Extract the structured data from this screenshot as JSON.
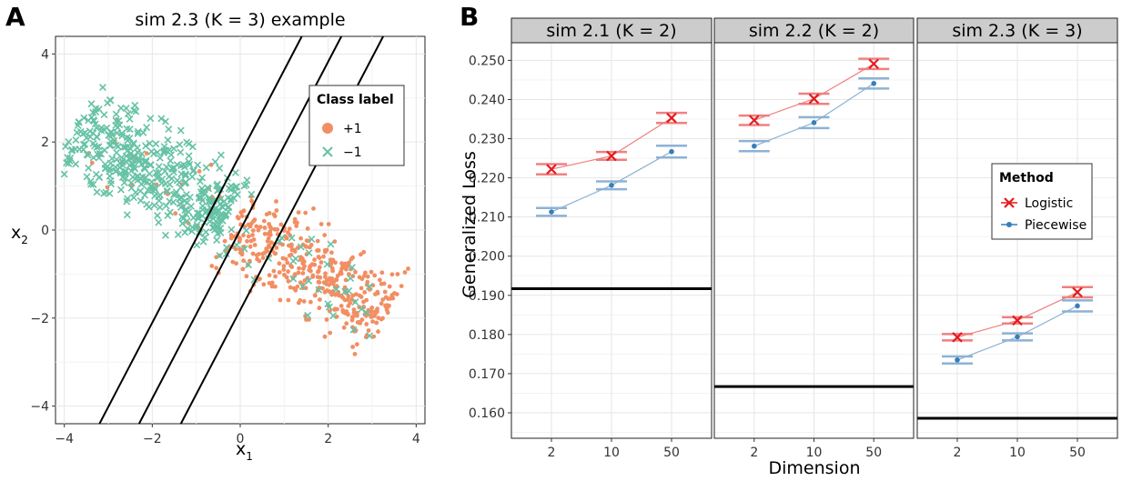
{
  "panel_labels": [
    "A",
    "B"
  ],
  "chart_data": [
    {
      "type": "scatter",
      "title": "sim 2.3 (K = 3) example",
      "xlabel": "x",
      "xlabel_sub": "1",
      "ylabel": "x",
      "ylabel_sub": "2",
      "xlim": [
        -4.2,
        4.2
      ],
      "ylim": [
        -4.4,
        4.4
      ],
      "xticks": [
        -4,
        -2,
        0,
        2,
        4
      ],
      "yticks": [
        -4,
        -2,
        0,
        2,
        4
      ],
      "xtick_labels": [
        "−4",
        "−2",
        "0",
        "2",
        "4"
      ],
      "ytick_labels": [
        "−4",
        "−2",
        "0",
        "2",
        "4"
      ],
      "grid": true,
      "legend": {
        "title": "Class label",
        "position": "top-right",
        "entries": [
          {
            "label": "+1",
            "color": "#F28E63",
            "marker": "circle"
          },
          {
            "label": "−1",
            "color": "#66C2A5",
            "marker": "cross"
          }
        ]
      },
      "cloud": {
        "positive_center": [
          1.6,
          -0.9
        ],
        "negative_center": [
          -2.0,
          1.3
        ],
        "main_axis": [
          0.88,
          -0.48
        ],
        "length_half": 2.7,
        "width_half": 0.85,
        "positive_count": 420,
        "negative_count": 420
      },
      "boundary_lines": [
        {
          "x0": -3.2,
          "y0": -4.4,
          "x1": 1.4,
          "y1": 4.4
        },
        {
          "x0": -2.3,
          "y0": -4.4,
          "x1": 2.3,
          "y1": 4.4
        },
        {
          "x0": -1.35,
          "y0": -4.4,
          "x1": 3.25,
          "y1": 4.4
        }
      ]
    },
    {
      "type": "line",
      "xlabel": "Dimension",
      "ylabel": "Generalized Loss",
      "categories": [
        "2",
        "10",
        "50"
      ],
      "ylim": [
        0.1535,
        0.2545
      ],
      "yticks": [
        0.16,
        0.17,
        0.18,
        0.19,
        0.2,
        0.21,
        0.22,
        0.23,
        0.24,
        0.25
      ],
      "ytick_labels": [
        "0.160",
        "0.170",
        "0.180",
        "0.190",
        "0.200",
        "0.210",
        "0.220",
        "0.230",
        "0.240",
        "0.250"
      ],
      "grid": true,
      "legend": {
        "title": "Method",
        "position": "inside-right",
        "entries": [
          {
            "label": "Logistic",
            "color": "#E41A1C",
            "marker": "cross"
          },
          {
            "label": "Piecewise",
            "color": "#377EB8",
            "marker": "circle"
          }
        ]
      },
      "facets": [
        {
          "strip": "sim 2.1 (K = 2)",
          "reference_line": 0.1917,
          "series": [
            {
              "name": "Logistic",
              "values": [
                0.2222,
                0.2256,
                0.2353
              ],
              "errors": [
                0.0013,
                0.001,
                0.0013
              ]
            },
            {
              "name": "Piecewise",
              "values": [
                0.2113,
                0.2181,
                0.2267
              ],
              "errors": [
                0.001,
                0.001,
                0.0015
              ]
            }
          ]
        },
        {
          "strip": "sim 2.2 (K = 2)",
          "reference_line": 0.1667,
          "series": [
            {
              "name": "Logistic",
              "values": [
                0.2347,
                0.2402,
                0.2491
              ],
              "errors": [
                0.0012,
                0.0013,
                0.0013
              ]
            },
            {
              "name": "Piecewise",
              "values": [
                0.2281,
                0.2341,
                0.2441
              ],
              "errors": [
                0.0013,
                0.0014,
                0.0013
              ]
            }
          ]
        },
        {
          "strip": "sim 2.3 (K = 3)",
          "reference_line": 0.1586,
          "series": [
            {
              "name": "Logistic",
              "values": [
                0.1793,
                0.1836,
                0.1908
              ],
              "errors": [
                0.0008,
                0.0008,
                0.0013
              ]
            },
            {
              "name": "Piecewise",
              "values": [
                0.1735,
                0.1794,
                0.1873
              ],
              "errors": [
                0.0009,
                0.0009,
                0.0014
              ]
            }
          ]
        }
      ]
    }
  ],
  "colors": {
    "panel_bg": "#ffffff",
    "grid": "#ebebeb",
    "strip_bg": "#cccccc",
    "frame": "#222222",
    "boundary": "#000000",
    "logistic_bar": "#F08080",
    "piecewise_bar": "#8DB2D4"
  }
}
